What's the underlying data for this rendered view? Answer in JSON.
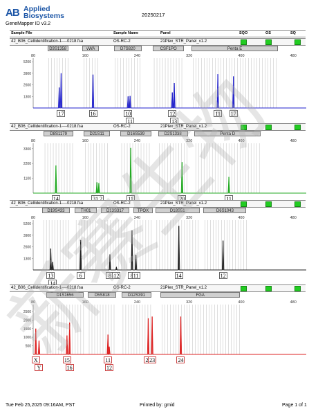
{
  "header": {
    "logo_mark": "AB",
    "logo_line1": "Applied",
    "logo_line2": "Biosystems",
    "software": "GeneMapper ID v3.2",
    "run_date": "20250217",
    "columns": {
      "sample_file": "Sample File",
      "sample_name": "Sample Name",
      "panel": "Panel",
      "sqo": "SQO",
      "os": "OS",
      "sq": "SQ"
    }
  },
  "footer": {
    "printed_at": "Tue Feb 25,2025 09:16AM, PST",
    "printed_by": "Printed by: gmid",
    "page": "Page 1 of 1"
  },
  "watermark": "新赛生物",
  "chart_data": [
    {
      "type": "line",
      "color": "#2222cc",
      "file": "42_B06_Cellidentification-1----0218.fsa",
      "sample_name": "OS-RC-2",
      "panel": "21Plex_STR_Panel_v1.2",
      "loci": [
        {
          "name": "D3S1358",
          "x0": 102,
          "x1": 134
        },
        {
          "name": "vWA",
          "x0": 156,
          "x1": 181
        },
        {
          "name": "D7S820",
          "x0": 204,
          "x1": 247
        },
        {
          "name": "CSF1PO",
          "x0": 264,
          "x1": 312
        },
        {
          "name": "Penta E",
          "x0": 324,
          "x1": 456
        }
      ],
      "xlim": [
        80,
        500
      ],
      "xticks": [
        80,
        160,
        240,
        320,
        400,
        480
      ],
      "ylim": [
        0,
        5600
      ],
      "yticks": [
        1300,
        2600,
        3900,
        5200
      ],
      "peaks": [
        {
          "x": 120,
          "h": 2300
        },
        {
          "x": 123,
          "h": 3900
        },
        {
          "x": 172,
          "h": 3750
        },
        {
          "x": 226,
          "h": 1300
        },
        {
          "x": 229,
          "h": 1350
        },
        {
          "x": 294,
          "h": 1750
        },
        {
          "x": 297,
          "h": 2800
        },
        {
          "x": 364,
          "h": 3800
        },
        {
          "x": 388,
          "h": 3550
        }
      ],
      "alleles": [
        {
          "label": "17",
          "x": 123,
          "row": 0
        },
        {
          "label": "16",
          "x": 172,
          "row": 0
        },
        {
          "label": "10",
          "x": 226,
          "row": 0
        },
        {
          "label": "11",
          "x": 229,
          "row": 1
        },
        {
          "label": "12",
          "x": 294,
          "row": 0
        },
        {
          "label": "13",
          "x": 297,
          "row": 1
        },
        {
          "label": "11",
          "x": 364,
          "row": 0
        },
        {
          "label": "17",
          "x": 388,
          "row": 0
        }
      ]
    },
    {
      "type": "line",
      "color": "#22aa22",
      "file": "42_B06_Cellidentification-1----0218.fsa",
      "sample_name": "OS-RC-2",
      "panel": "21Plex_STR_Panel_v1.2",
      "loci": [
        {
          "name": "D8S1179",
          "x0": 96,
          "x1": 142
        },
        {
          "name": "D21S11",
          "x0": 158,
          "x1": 198
        },
        {
          "name": "D16S539",
          "x0": 214,
          "x1": 262
        },
        {
          "name": "D2S1338",
          "x0": 272,
          "x1": 318
        },
        {
          "name": "Penta D",
          "x0": 328,
          "x1": 430
        }
      ],
      "xlim": [
        80,
        500
      ],
      "xticks": [
        80,
        160,
        240,
        320,
        400,
        480
      ],
      "ylim": [
        0,
        3700
      ],
      "yticks": [
        1100,
        2200,
        3300
      ],
      "peaks": [
        {
          "x": 115,
          "h": 2050
        },
        {
          "x": 178,
          "h": 800
        },
        {
          "x": 181,
          "h": 750
        },
        {
          "x": 230,
          "h": 3350
        },
        {
          "x": 309,
          "h": 2300
        },
        {
          "x": 381,
          "h": 1200
        }
      ],
      "alleles": [
        {
          "label": "14",
          "x": 115,
          "row": 0
        },
        {
          "label": "31.2",
          "x": 179,
          "row": 0
        },
        {
          "label": "11",
          "x": 230,
          "row": 0
        },
        {
          "label": "20",
          "x": 309,
          "row": 0
        },
        {
          "label": "11",
          "x": 381,
          "row": 0
        }
      ]
    },
    {
      "type": "line",
      "color": "#222222",
      "file": "42_B06_Cellidentification-1----0218.fsa",
      "sample_name": "OS-RC-2",
      "panel": "21Plex_STR_Panel_v1.2",
      "loci": [
        {
          "name": "D19S433",
          "x0": 94,
          "x1": 136
        },
        {
          "name": "TH01",
          "x0": 144,
          "x1": 178
        },
        {
          "name": "D13S317",
          "x0": 184,
          "x1": 228
        },
        {
          "name": "TPOX",
          "x0": 234,
          "x1": 264
        },
        {
          "name": "D18S51",
          "x0": 268,
          "x1": 336
        },
        {
          "name": "D6S1043",
          "x0": 342,
          "x1": 408
        }
      ],
      "xlim": [
        80,
        500
      ],
      "xticks": [
        80,
        160,
        240,
        320,
        400,
        480
      ],
      "ylim": [
        0,
        5600
      ],
      "yticks": [
        1300,
        2600,
        3900,
        5200
      ],
      "peaks": [
        {
          "x": 107,
          "h": 2400
        },
        {
          "x": 110,
          "h": 900
        },
        {
          "x": 153,
          "h": 3350
        },
        {
          "x": 198,
          "h": 1750
        },
        {
          "x": 208,
          "h": 300
        },
        {
          "x": 232,
          "h": 4450
        },
        {
          "x": 238,
          "h": 1700
        },
        {
          "x": 304,
          "h": 4950
        },
        {
          "x": 372,
          "h": 3300
        }
      ],
      "alleles": [
        {
          "label": "13",
          "x": 107,
          "row": 0
        },
        {
          "label": "14",
          "x": 110,
          "row": 1
        },
        {
          "label": "6",
          "x": 153,
          "row": 0
        },
        {
          "label": "8",
          "x": 198,
          "row": 0
        },
        {
          "label": "12",
          "x": 208,
          "row": 0
        },
        {
          "label": "8",
          "x": 232,
          "row": 0
        },
        {
          "label": "11",
          "x": 238,
          "row": 0
        },
        {
          "label": "14",
          "x": 304,
          "row": 0
        },
        {
          "label": "12",
          "x": 372,
          "row": 0
        }
      ]
    },
    {
      "type": "line",
      "color": "#dd2222",
      "file": "42_B06_Cellidentification-1----0218.fsa",
      "sample_name": "OS-RC-2",
      "panel": "21Plex_STR_Panel_v1.2",
      "loci": [
        {
          "name": "D1S1656",
          "x0": 100,
          "x1": 158
        },
        {
          "name": "D5S818",
          "x0": 164,
          "x1": 208
        },
        {
          "name": "D12S391",
          "x0": 216,
          "x1": 262
        },
        {
          "name": "FGA",
          "x0": 276,
          "x1": 398
        }
      ],
      "xlim": [
        80,
        500
      ],
      "xticks": [
        80,
        160,
        240,
        320,
        400,
        480
      ],
      "ylim": [
        0,
        2900
      ],
      "yticks": [
        500,
        1000,
        1500,
        2000,
        2500
      ],
      "peaks": [
        {
          "x": 84,
          "h": 1500
        },
        {
          "x": 89,
          "h": 800
        },
        {
          "x": 132,
          "h": 1100
        },
        {
          "x": 136,
          "h": 1850
        },
        {
          "x": 195,
          "h": 1150
        },
        {
          "x": 197,
          "h": 450
        },
        {
          "x": 257,
          "h": 2100
        },
        {
          "x": 263,
          "h": 2200
        },
        {
          "x": 307,
          "h": 2200
        }
      ],
      "alleles": [
        {
          "label": "X",
          "x": 84,
          "row": 0
        },
        {
          "label": "Y",
          "x": 89,
          "row": 1
        },
        {
          "label": "15",
          "x": 132,
          "row": 0
        },
        {
          "label": "16",
          "x": 136,
          "row": 1
        },
        {
          "label": "11",
          "x": 195,
          "row": 0
        },
        {
          "label": "12",
          "x": 197,
          "row": 1
        },
        {
          "label": "20",
          "x": 257,
          "row": 0
        },
        {
          "label": "23",
          "x": 263,
          "row": 0
        },
        {
          "label": "24",
          "x": 307,
          "row": 0
        }
      ]
    }
  ]
}
